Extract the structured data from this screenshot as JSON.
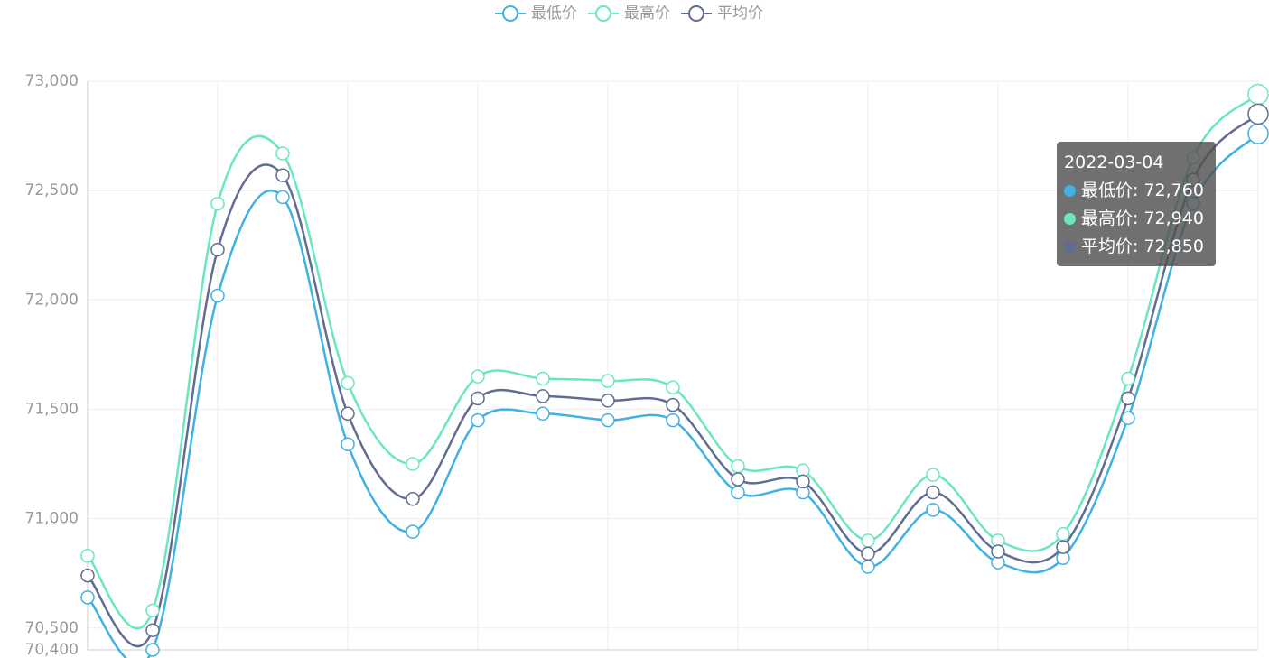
{
  "chart_data": {
    "type": "line",
    "categories": [
      null,
      null,
      null,
      null,
      null,
      null,
      null,
      null,
      null,
      null,
      null,
      null,
      null,
      null,
      null,
      null,
      null,
      null,
      "2022-03-04"
    ],
    "series": [
      {
        "name": "最低价",
        "color": "#3fb1e3",
        "values": [
          70640,
          70400,
          72020,
          72470,
          71340,
          70940,
          71450,
          71480,
          71450,
          71450,
          71120,
          71120,
          70780,
          71040,
          70800,
          70820,
          71460,
          72440,
          72760
        ],
        "value_labels": [
          null,
          null,
          null,
          null,
          null,
          null,
          null,
          null,
          null,
          null,
          null,
          null,
          null,
          null,
          null,
          null,
          null,
          null,
          "72,760"
        ]
      },
      {
        "name": "最高价",
        "color": "#6be6c1",
        "values": [
          70830,
          70580,
          72440,
          72670,
          71620,
          71250,
          71650,
          71640,
          71630,
          71600,
          71240,
          71220,
          70900,
          71200,
          70900,
          70930,
          71640,
          72650,
          72940
        ],
        "value_labels": [
          null,
          null,
          null,
          null,
          null,
          null,
          null,
          null,
          null,
          null,
          null,
          null,
          null,
          null,
          null,
          null,
          null,
          null,
          "72,940"
        ]
      },
      {
        "name": "平均价",
        "color": "#626c91",
        "values": [
          70740,
          70490,
          72230,
          72570,
          71480,
          71090,
          71550,
          71560,
          71540,
          71520,
          71180,
          71170,
          70840,
          71120,
          70850,
          70870,
          71550,
          72550,
          72850
        ],
        "value_labels": [
          null,
          null,
          null,
          null,
          null,
          null,
          null,
          null,
          null,
          null,
          null,
          null,
          null,
          null,
          null,
          null,
          null,
          null,
          "72,850"
        ]
      }
    ],
    "ylim": [
      70400,
      73000
    ],
    "yticks": [
      {
        "value": 70400,
        "label": "70,400"
      },
      {
        "value": 70500,
        "label": "70,500"
      },
      {
        "value": 71000,
        "label": "71,000"
      },
      {
        "value": 71500,
        "label": "71,500"
      },
      {
        "value": 72000,
        "label": "72,000"
      },
      {
        "value": 72500,
        "label": "72,500"
      },
      {
        "value": 73000,
        "label": "73,000"
      }
    ],
    "grid": true,
    "smooth": true,
    "legend": "top"
  }
}
